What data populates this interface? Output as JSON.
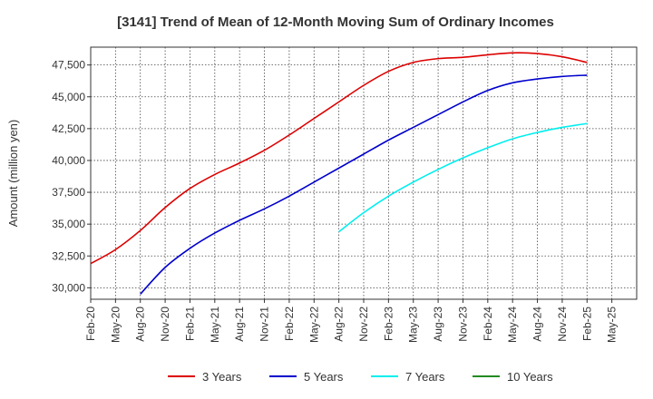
{
  "chart_data": {
    "type": "line",
    "title": "[3141]  Trend of Mean of 12-Month Moving Sum of Ordinary Incomes",
    "xlabel": "",
    "ylabel": "Amount (million yen)",
    "x_ticks": [
      "Feb-20",
      "May-20",
      "Aug-20",
      "Nov-20",
      "Feb-21",
      "May-21",
      "Aug-21",
      "Nov-21",
      "Feb-22",
      "May-22",
      "Aug-22",
      "Nov-22",
      "Feb-23",
      "May-23",
      "Aug-23",
      "Nov-23",
      "Feb-24",
      "May-24",
      "Aug-24",
      "Nov-24",
      "Feb-25",
      "May-25"
    ],
    "y_ticks": [
      "30,000",
      "32,500",
      "35,000",
      "37,500",
      "40,000",
      "42,500",
      "45,000",
      "47,500"
    ],
    "y_tick_values": [
      30000,
      32500,
      35000,
      37500,
      40000,
      42500,
      45000,
      47500
    ],
    "ylim": [
      29100,
      48900
    ],
    "grid": true,
    "legend_position": "bottom",
    "series": [
      {
        "name": "3 Years",
        "color": "#dd0000",
        "x": [
          "Feb-20",
          "May-20",
          "Aug-20",
          "Nov-20",
          "Feb-21",
          "May-21",
          "Aug-21",
          "Nov-21",
          "Feb-22",
          "May-22",
          "Aug-22",
          "Nov-22",
          "Feb-23",
          "May-23",
          "Aug-23",
          "Nov-23",
          "Feb-24",
          "May-24",
          "Aug-24",
          "Nov-24",
          "Feb-25"
        ],
        "values": [
          31900,
          33000,
          34500,
          36300,
          37800,
          38900,
          39800,
          40800,
          42000,
          43300,
          44600,
          45900,
          47000,
          47700,
          48000,
          48100,
          48300,
          48450,
          48400,
          48150,
          47700
        ]
      },
      {
        "name": "5 Years",
        "color": "#0000cc",
        "x": [
          "Aug-20",
          "Nov-20",
          "Feb-21",
          "May-21",
          "Aug-21",
          "Nov-21",
          "Feb-22",
          "May-22",
          "Aug-22",
          "Nov-22",
          "Feb-23",
          "May-23",
          "Aug-23",
          "Nov-23",
          "Feb-24",
          "May-24",
          "Aug-24",
          "Nov-24",
          "Feb-25"
        ],
        "values": [
          29500,
          31600,
          33100,
          34300,
          35300,
          36200,
          37200,
          38300,
          39400,
          40500,
          41600,
          42600,
          43600,
          44600,
          45500,
          46100,
          46400,
          46600,
          46700
        ]
      },
      {
        "name": "7 Years",
        "color": "#00eeee",
        "x": [
          "Aug-22",
          "Nov-22",
          "Feb-23",
          "May-23",
          "Aug-23",
          "Nov-23",
          "Feb-24",
          "May-24",
          "Aug-24",
          "Nov-24",
          "Feb-25"
        ],
        "values": [
          34400,
          35900,
          37200,
          38300,
          39300,
          40200,
          41000,
          41700,
          42200,
          42600,
          42900
        ]
      },
      {
        "name": "10 Years",
        "color": "#228b22",
        "x": [],
        "values": []
      }
    ]
  }
}
